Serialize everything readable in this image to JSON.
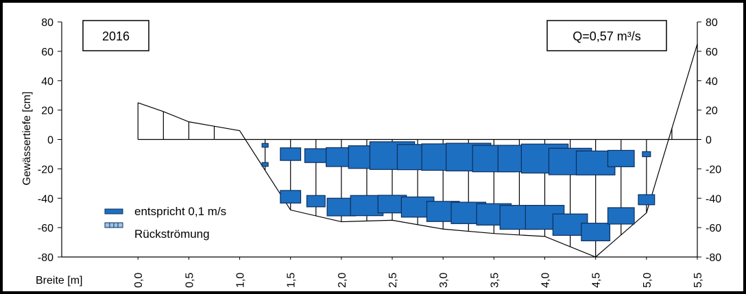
{
  "chart_data": {
    "type": "velocity-profile",
    "year_label": "2016",
    "discharge_label": "Q=0,57 m³/s",
    "xlabel": "Breite [m]",
    "ylabel": "Gewässertiefe [cm]",
    "xlim": [
      -0.75,
      5.5
    ],
    "ylim": [
      -80,
      80
    ],
    "x_ticks": [
      0.0,
      0.5,
      1.0,
      1.5,
      2.0,
      2.5,
      3.0,
      3.5,
      4.0,
      4.5,
      5.0,
      5.5
    ],
    "x_tick_labels": [
      "0,0",
      "0,5",
      "1,0",
      "1,5",
      "2,0",
      "2,5",
      "3,0",
      "3,5",
      "4,0",
      "4,5",
      "5,0",
      "5,5"
    ],
    "y_ticks": [
      80,
      60,
      40,
      20,
      0,
      -20,
      -40,
      -60,
      -80
    ],
    "y_tick_labels": [
      "80",
      "60",
      "40",
      "20",
      "0",
      "-20",
      "-40",
      "-60",
      "-80"
    ],
    "bank_profile": [
      {
        "x": 0.0,
        "y": 25
      },
      {
        "x": 0.25,
        "y": 19
      },
      {
        "x": 0.5,
        "y": 12
      },
      {
        "x": 0.75,
        "y": 9
      },
      {
        "x": 1.0,
        "y": 6
      },
      {
        "x": 1.5,
        "y": -48
      },
      {
        "x": 2.0,
        "y": -56
      },
      {
        "x": 2.5,
        "y": -55
      },
      {
        "x": 3.0,
        "y": -61
      },
      {
        "x": 3.5,
        "y": -64
      },
      {
        "x": 4.0,
        "y": -66
      },
      {
        "x": 4.5,
        "y": -80
      },
      {
        "x": 5.0,
        "y": -50
      },
      {
        "x": 5.5,
        "y": 65
      }
    ],
    "verticals": [
      {
        "x": 0.25,
        "bottom": 0,
        "top": 19
      },
      {
        "x": 0.5,
        "bottom": 0,
        "top": 12
      },
      {
        "x": 0.75,
        "bottom": 0,
        "top": 9
      },
      {
        "x": 1.25,
        "bottom": -21,
        "top": 0
      },
      {
        "x": 1.5,
        "bottom": -48,
        "top": 0
      },
      {
        "x": 1.75,
        "bottom": -52,
        "top": 0
      },
      {
        "x": 2.0,
        "bottom": -56,
        "top": 0
      },
      {
        "x": 2.25,
        "bottom": -55.5,
        "top": 0
      },
      {
        "x": 2.5,
        "bottom": -55,
        "top": 0
      },
      {
        "x": 2.75,
        "bottom": -58,
        "top": 0
      },
      {
        "x": 3.0,
        "bottom": -61,
        "top": 0
      },
      {
        "x": 3.25,
        "bottom": -62.5,
        "top": 0
      },
      {
        "x": 3.5,
        "bottom": -64,
        "top": 0
      },
      {
        "x": 3.75,
        "bottom": -65,
        "top": 0
      },
      {
        "x": 4.0,
        "bottom": -66,
        "top": 0
      },
      {
        "x": 4.25,
        "bottom": -73,
        "top": 0
      },
      {
        "x": 4.5,
        "bottom": -80,
        "top": 0
      },
      {
        "x": 4.75,
        "bottom": -65,
        "top": 0
      },
      {
        "x": 5.0,
        "bottom": -50,
        "top": 0
      },
      {
        "x": 5.25,
        "bottom": 0,
        "top": 8
      }
    ],
    "velocity_bars": [
      {
        "x": 1.25,
        "depth": -4,
        "width": 0.06
      },
      {
        "x": 1.25,
        "depth": -17,
        "width": 0.06
      },
      {
        "x": 1.5,
        "depth": -10,
        "width": 0.2
      },
      {
        "x": 1.5,
        "depth": -39,
        "width": 0.2
      },
      {
        "x": 1.75,
        "depth": -11,
        "width": 0.22
      },
      {
        "x": 1.75,
        "depth": -42,
        "width": 0.18
      },
      {
        "x": 2.0,
        "depth": -12,
        "width": 0.3
      },
      {
        "x": 2.0,
        "depth": -46,
        "width": 0.28
      },
      {
        "x": 2.25,
        "depth": -12,
        "width": 0.36
      },
      {
        "x": 2.25,
        "depth": -45,
        "width": 0.32
      },
      {
        "x": 2.5,
        "depth": -11,
        "width": 0.44
      },
      {
        "x": 2.5,
        "depth": -44,
        "width": 0.28
      },
      {
        "x": 2.75,
        "depth": -12,
        "width": 0.4
      },
      {
        "x": 2.75,
        "depth": -46,
        "width": 0.32
      },
      {
        "x": 3.0,
        "depth": -12,
        "width": 0.42
      },
      {
        "x": 3.0,
        "depth": -49,
        "width": 0.32
      },
      {
        "x": 3.25,
        "depth": -12,
        "width": 0.44
      },
      {
        "x": 3.25,
        "depth": -50,
        "width": 0.34
      },
      {
        "x": 3.5,
        "depth": -13,
        "width": 0.42
      },
      {
        "x": 3.5,
        "depth": -51,
        "width": 0.34
      },
      {
        "x": 3.75,
        "depth": -13,
        "width": 0.42
      },
      {
        "x": 3.75,
        "depth": -53,
        "width": 0.38
      },
      {
        "x": 4.0,
        "depth": -13,
        "width": 0.46
      },
      {
        "x": 4.0,
        "depth": -53,
        "width": 0.38
      },
      {
        "x": 4.25,
        "depth": -15,
        "width": 0.42
      },
      {
        "x": 4.25,
        "depth": -58,
        "width": 0.34
      },
      {
        "x": 4.5,
        "depth": -16,
        "width": 0.38
      },
      {
        "x": 4.5,
        "depth": -63,
        "width": 0.28
      },
      {
        "x": 4.75,
        "depth": -13,
        "width": 0.26
      },
      {
        "x": 4.75,
        "depth": -52,
        "width": 0.26
      },
      {
        "x": 5.0,
        "depth": -10,
        "width": 0.08
      },
      {
        "x": 5.0,
        "depth": -41,
        "width": 0.16
      }
    ],
    "legend": [
      {
        "label": "entspricht 0,1 m/s",
        "style": "flow"
      },
      {
        "label": "Rückströmung",
        "style": "backflow"
      }
    ],
    "legend_position": "lower-left",
    "grid": false,
    "colors": {
      "bar_fill": "#1d6fc2",
      "bar_stroke": "#0d2f5a",
      "line": "#000000",
      "backflow_fill": "#9dc3e6"
    }
  }
}
